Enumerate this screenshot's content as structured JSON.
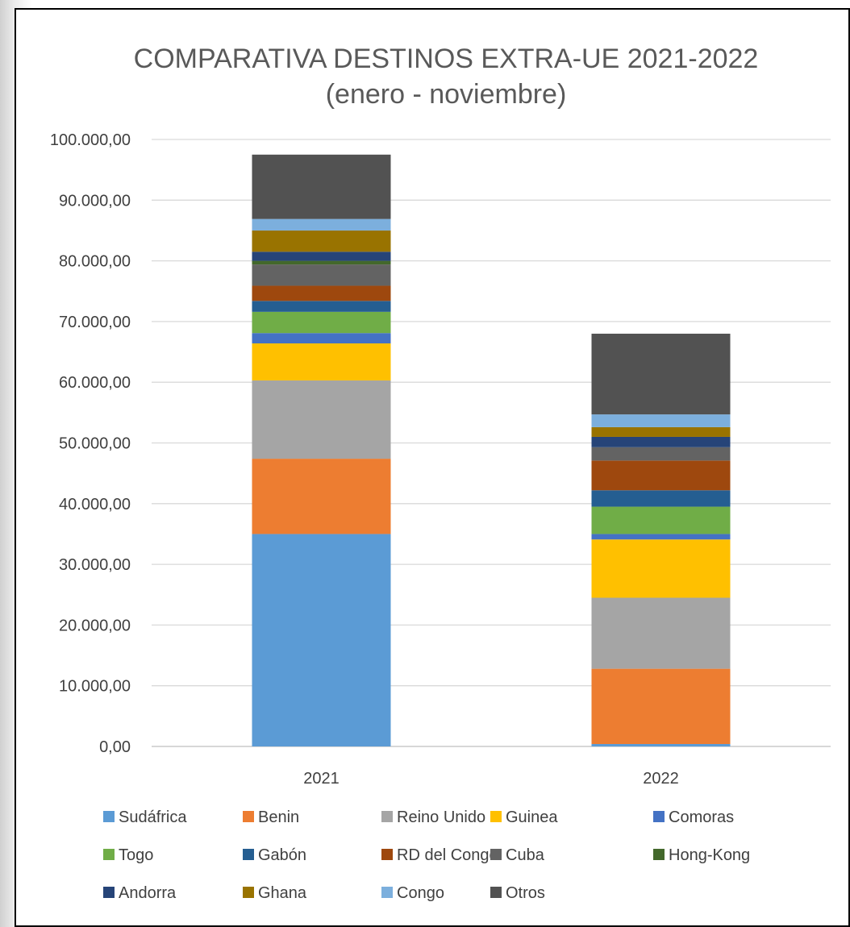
{
  "chart_data": {
    "type": "bar",
    "stacked": true,
    "title": "COMPARATIVA DESTINOS EXTRA-UE 2021-2022",
    "subtitle": "(enero - noviembre)",
    "xlabel": "",
    "ylabel": "",
    "categories": [
      "2021",
      "2022"
    ],
    "ylim": [
      0,
      100000
    ],
    "yticks": [
      0,
      10000,
      20000,
      30000,
      40000,
      50000,
      60000,
      70000,
      80000,
      90000,
      100000
    ],
    "ytick_labels": [
      "0,00",
      "10.000,00",
      "20.000,00",
      "30.000,00",
      "40.000,00",
      "50.000,00",
      "60.000,00",
      "70.000,00",
      "80.000,00",
      "90.000,00",
      "100.000,00"
    ],
    "grid": true,
    "legend_position": "bottom",
    "series": [
      {
        "name": "Sudáfrica",
        "color": "#5b9bd5",
        "values": [
          35000,
          400
        ]
      },
      {
        "name": "Benin",
        "color": "#ed7d31",
        "values": [
          12400,
          12400
        ]
      },
      {
        "name": "Reino Unido",
        "color": "#a5a5a5",
        "values": [
          12900,
          11700
        ]
      },
      {
        "name": "Guinea",
        "color": "#ffc000",
        "values": [
          6100,
          9600
        ]
      },
      {
        "name": "Comoras",
        "color": "#4472c4",
        "values": [
          1700,
          900
        ]
      },
      {
        "name": "Togo",
        "color": "#70ad47",
        "values": [
          3500,
          4500
        ]
      },
      {
        "name": "Gabón",
        "color": "#255e91",
        "values": [
          1800,
          2700
        ]
      },
      {
        "name": "RD del Congo",
        "color": "#9e480e",
        "values": [
          2500,
          4900
        ]
      },
      {
        "name": "Cuba",
        "color": "#636363",
        "values": [
          3500,
          2200
        ]
      },
      {
        "name": "Hong-Kong",
        "color": "#43682b",
        "values": [
          600,
          0
        ]
      },
      {
        "name": "Andorra",
        "color": "#264478",
        "values": [
          1500,
          1700
        ]
      },
      {
        "name": "Ghana",
        "color": "#997300",
        "values": [
          3500,
          1600
        ]
      },
      {
        "name": "Congo",
        "color": "#7cafdd",
        "values": [
          1900,
          2100
        ]
      },
      {
        "name": "Otros",
        "color": "#525252",
        "values": [
          10600,
          13300
        ]
      }
    ]
  }
}
